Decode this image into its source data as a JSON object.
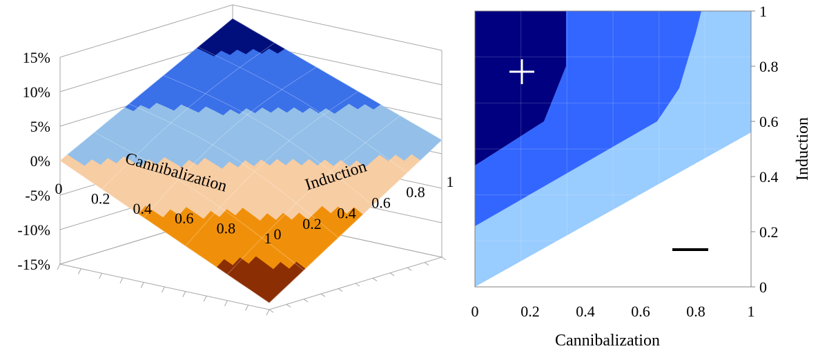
{
  "chart_data": [
    {
      "type": "surface3d",
      "xlabel": "Cannibalization",
      "ylabel": "Induction",
      "x_ticks": [
        "0",
        "0.2",
        "0.4",
        "0.6",
        "0.8",
        "1"
      ],
      "y_ticks": [
        "0",
        "0.2",
        "0.4",
        "0.6",
        "0.8",
        "1"
      ],
      "z_ticks": [
        "15%",
        "10%",
        "5%",
        "0%",
        "-5%",
        "-10%",
        "-15%"
      ],
      "zlim": [
        -15,
        15
      ],
      "color_bands": [
        {
          "range": [
            -15,
            -10
          ],
          "color": "#8b2e03"
        },
        {
          "range": [
            -10,
            -5
          ],
          "color": "#f0900a"
        },
        {
          "range": [
            -5,
            0
          ],
          "color": "#f7cda3"
        },
        {
          "range": [
            0,
            5
          ],
          "color": "#93bfe8"
        },
        {
          "range": [
            5,
            10
          ],
          "color": "#3a70e8"
        },
        {
          "range": [
            10,
            15
          ],
          "color": "#000f7b"
        }
      ],
      "corner_values": [
        {
          "cannibalization": 0,
          "induction": 0,
          "value": 0
        },
        {
          "cannibalization": 1,
          "induction": 0,
          "value": -14
        },
        {
          "cannibalization": 0,
          "induction": 1,
          "value": 13
        },
        {
          "cannibalization": 1,
          "induction": 1,
          "value": 2
        }
      ]
    },
    {
      "type": "contour",
      "xlabel": "Cannibalization",
      "ylabel": "Induction",
      "x_ticks": [
        "0",
        "0.2",
        "0.4",
        "0.6",
        "0.8",
        "1"
      ],
      "y_ticks": [
        "0",
        "0.2",
        "0.4",
        "0.6",
        "0.8",
        "1"
      ],
      "xlim": [
        0,
        1
      ],
      "ylim": [
        0,
        1
      ],
      "regions": [
        {
          "color": "#ffffff",
          "polygon": [
            [
              0,
              0
            ],
            [
              1,
              0
            ],
            [
              1,
              0.56
            ],
            [
              0,
              0
            ]
          ]
        },
        {
          "color": "#99ccff",
          "polygon": [
            [
              0,
              0
            ],
            [
              1,
              0.56
            ],
            [
              1,
              1
            ],
            [
              0.82,
              1
            ],
            [
              0.8,
              0.92
            ],
            [
              0.74,
              0.72
            ],
            [
              0.66,
              0.6
            ],
            [
              0,
              0.22
            ]
          ]
        },
        {
          "color": "#3366ff",
          "polygon": [
            [
              0,
              0.22
            ],
            [
              0.66,
              0.6
            ],
            [
              0.74,
              0.72
            ],
            [
              0.8,
              0.92
            ],
            [
              0.82,
              1
            ],
            [
              0.33,
              1
            ],
            [
              0.33,
              0.8
            ],
            [
              0.25,
              0.6
            ],
            [
              0,
              0.44
            ]
          ]
        },
        {
          "color": "#000080",
          "polygon": [
            [
              0,
              0.44
            ],
            [
              0.25,
              0.6
            ],
            [
              0.33,
              0.8
            ],
            [
              0.33,
              1
            ],
            [
              0,
              1
            ]
          ]
        }
      ],
      "annotations": [
        {
          "symbol": "+",
          "cannibalization": 0.17,
          "induction": 0.78,
          "color": "#ffffff"
        },
        {
          "symbol": "−",
          "cannibalization": 0.78,
          "induction": 0.135,
          "color": "#000000"
        }
      ]
    }
  ]
}
